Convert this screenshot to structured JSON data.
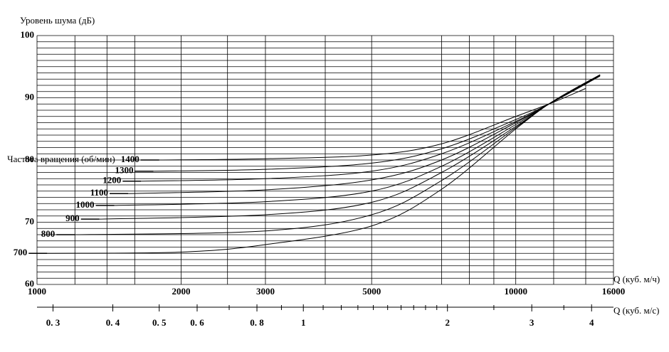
{
  "chart_data": {
    "type": "line",
    "y_label": "Уровень шума (дБ)",
    "x_label": "Q (куб. м/ч)",
    "x2_label": "Q (куб. м/с)",
    "annotation": "Частота вращения (об/мин)",
    "xscale": "log",
    "xlim": [
      1000,
      16000
    ],
    "xticks": [
      1000,
      2000,
      3000,
      5000,
      10000,
      16000
    ],
    "xgrid": [
      1000,
      1200,
      1400,
      1600,
      2000,
      2500,
      3000,
      4000,
      5000,
      7000,
      8000,
      9000,
      10000,
      12000,
      14000,
      16000
    ],
    "ylim": [
      60,
      100
    ],
    "yticks": [
      60,
      70,
      80,
      90,
      100
    ],
    "ygrid": [
      60,
      61,
      62,
      63,
      64,
      65,
      66,
      67,
      68,
      69,
      70,
      71,
      72,
      73,
      74,
      75,
      76,
      77,
      78,
      79,
      80,
      81,
      82,
      83,
      84,
      85,
      86,
      87,
      88,
      89,
      90,
      91,
      92,
      93,
      94,
      95,
      96,
      97,
      98,
      99,
      100
    ],
    "x2lim": [
      0.27778,
      4.44444
    ],
    "x2ticks": [
      {
        "value": 0.3,
        "label": "0. 3"
      },
      {
        "value": 0.4,
        "label": "0. 4"
      },
      {
        "value": 0.5,
        "label": "0. 5"
      },
      {
        "value": 0.6,
        "label": "0. 6"
      },
      {
        "value": 0.8,
        "label": "0. 8"
      },
      1,
      2,
      3,
      4
    ],
    "x2minor": [
      0.7,
      0.9,
      1.1,
      1.2,
      1.3,
      1.4,
      1.5,
      1.6,
      1.7,
      1.8,
      1.9,
      2.5,
      3.5
    ],
    "color": "#000000",
    "series": [
      {
        "name": "700",
        "x": [
          1050,
          2000,
          3000,
          5000,
          7000,
          10000,
          12000,
          15000
        ],
        "values": [
          65,
          65.2,
          66.4,
          69.4,
          75.3,
          85,
          89.5,
          93.7
        ]
      },
      {
        "name": "800",
        "x": [
          1200,
          3000,
          5000,
          7000,
          10000,
          12000,
          15000
        ],
        "values": [
          68,
          68.6,
          71.2,
          76.7,
          85.2,
          89.5,
          93.7
        ]
      },
      {
        "name": "900",
        "x": [
          1350,
          3000,
          5000,
          7000,
          10000,
          12000,
          15000
        ],
        "values": [
          70.5,
          71.2,
          73.2,
          78,
          85.4,
          89.5,
          93.7
        ]
      },
      {
        "name": "1000",
        "x": [
          1450,
          3000,
          5000,
          7000,
          10000,
          12000,
          15000
        ],
        "values": [
          72.7,
          73.3,
          75,
          79,
          85.7,
          89.5,
          93.7
        ]
      },
      {
        "name": "1100",
        "x": [
          1550,
          3000,
          5000,
          7000,
          10000,
          12000,
          15000
        ],
        "values": [
          74.6,
          75.2,
          76.8,
          80,
          86,
          89.4,
          93.6
        ]
      },
      {
        "name": "1200",
        "x": [
          1650,
          3000,
          5000,
          7000,
          10000,
          12000,
          15000
        ],
        "values": [
          76.6,
          77,
          78.2,
          81,
          86.2,
          89.4,
          93.6
        ]
      },
      {
        "name": "1300",
        "x": [
          1750,
          3000,
          5000,
          7000,
          10000,
          12000,
          15000
        ],
        "values": [
          78.2,
          78.5,
          79.5,
          81.8,
          86.5,
          89.4,
          93.5
        ]
      },
      {
        "name": "1400",
        "x": [
          1800,
          3000,
          5000,
          7000,
          10000,
          12000,
          14000
        ],
        "values": [
          80,
          80.2,
          80.8,
          82.6,
          87,
          89.3,
          91.5
        ]
      }
    ]
  }
}
